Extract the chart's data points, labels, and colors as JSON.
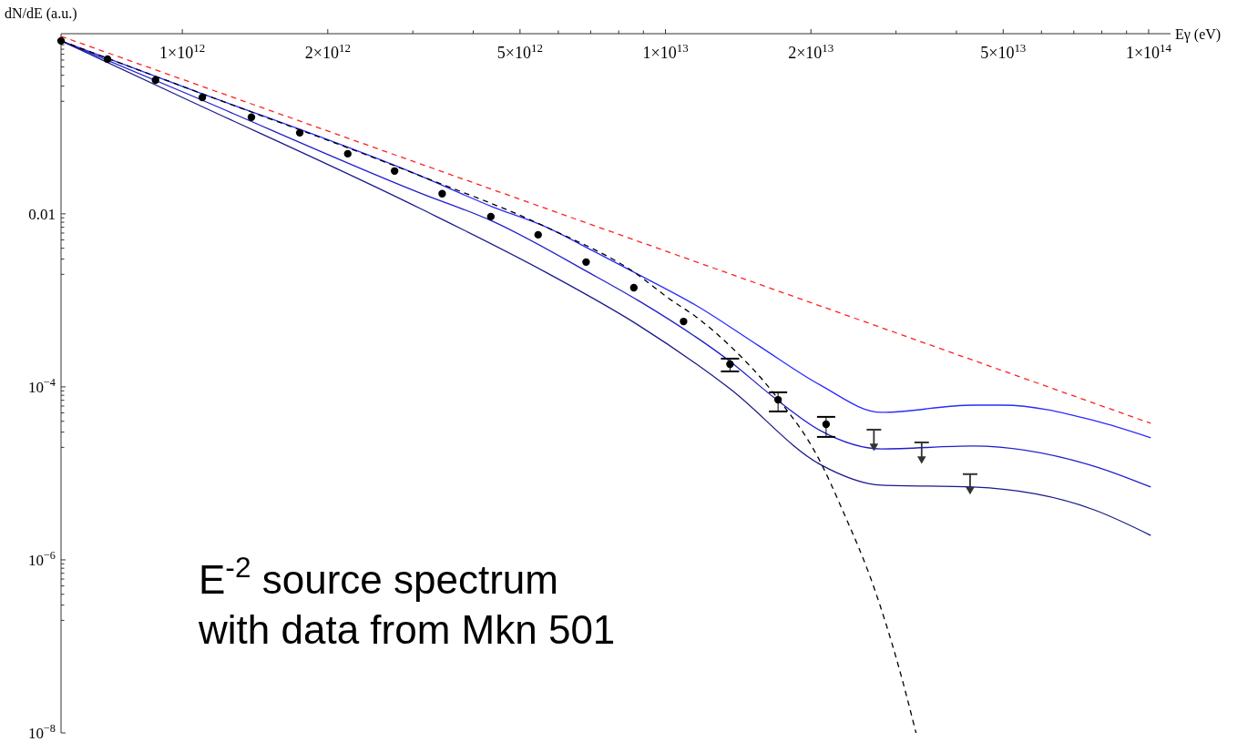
{
  "chart_data": {
    "type": "line",
    "xlabel": "Eγ (eV)",
    "ylabel": "dN/dE (a.u.)",
    "log": "xy",
    "xlim": [
      561000000000.0,
      111000000000000.0
    ],
    "ylim": [
      1e-08,
      1.21
    ],
    "xticks": [
      {
        "value": 1000000000000.0,
        "label": "1×10$^{12}$"
      },
      {
        "value": 2000000000000.0,
        "label": "2×10$^{12}$"
      },
      {
        "value": 3000000000000.0,
        "label": null
      },
      {
        "value": 4000000000000.0,
        "label": null
      },
      {
        "value": 5000000000000.0,
        "label": "5×10$^{12}$"
      },
      {
        "value": 6000000000000.0,
        "label": null
      },
      {
        "value": 7000000000000.0,
        "label": null
      },
      {
        "value": 8000000000000.0,
        "label": null
      },
      {
        "value": 9000000000000.0,
        "label": null
      },
      {
        "value": 10000000000000.0,
        "label": "1×10$^{13}$"
      },
      {
        "value": 20000000000000.0,
        "label": "2×10$^{13}$"
      },
      {
        "value": 30000000000000.0,
        "label": null
      },
      {
        "value": 40000000000000.0,
        "label": null
      },
      {
        "value": 50000000000000.0,
        "label": "5×10$^{13}$"
      },
      {
        "value": 60000000000000.0,
        "label": null
      },
      {
        "value": 70000000000000.0,
        "label": null
      },
      {
        "value": 80000000000000.0,
        "label": null
      },
      {
        "value": 90000000000000.0,
        "label": null
      },
      {
        "value": 100000000000000.0,
        "label": "1×10$^{14}$"
      }
    ],
    "yticks": [
      {
        "value": 0.01,
        "label": "0.01"
      },
      {
        "value": 0.0001,
        "label": "10$^{−4}$"
      },
      {
        "value": 1e-06,
        "label": "10$^{−6}$"
      },
      {
        "value": 1e-08,
        "label": "10$^{−8}$"
      },
      {
        "value": 0.9,
        "label": null
      },
      {
        "value": 0.8,
        "label": null
      },
      {
        "value": 0.7,
        "label": null
      },
      {
        "value": 0.6,
        "label": null
      },
      {
        "value": 0.5,
        "label": null
      },
      {
        "value": 0.4,
        "label": null
      },
      {
        "value": 0.3,
        "label": null
      },
      {
        "value": 0.2,
        "label": null
      },
      {
        "value": 0.009,
        "label": null
      },
      {
        "value": 0.008,
        "label": null
      },
      {
        "value": 0.007,
        "label": null
      },
      {
        "value": 0.006,
        "label": null
      },
      {
        "value": 0.005,
        "label": null
      },
      {
        "value": 0.004,
        "label": null
      },
      {
        "value": 0.003,
        "label": null
      },
      {
        "value": 0.002,
        "label": null
      },
      {
        "value": 9e-05,
        "label": null
      },
      {
        "value": 8e-05,
        "label": null
      },
      {
        "value": 7e-05,
        "label": null
      },
      {
        "value": 6e-05,
        "label": null
      },
      {
        "value": 5e-05,
        "label": null
      },
      {
        "value": 4e-05,
        "label": null
      },
      {
        "value": 3e-05,
        "label": null
      },
      {
        "value": 2e-05,
        "label": null
      },
      {
        "value": 9e-07,
        "label": null
      },
      {
        "value": 8e-07,
        "label": null
      },
      {
        "value": 7e-07,
        "label": null
      },
      {
        "value": 6e-07,
        "label": null
      },
      {
        "value": 5e-07,
        "label": null
      },
      {
        "value": 4e-07,
        "label": null
      },
      {
        "value": 3e-07,
        "label": null
      },
      {
        "value": 2e-07,
        "label": null
      }
    ],
    "series": [
      {
        "type": "line",
        "color": "#ff2020",
        "line_style": "dashed",
        "x": [
          561000000000.0,
          101000000000000.0
        ],
        "values": [
          1.13,
          3.79e-05
        ]
      },
      {
        "type": "line",
        "color": "#2a2aff",
        "line_style": "solid",
        "x": [
          561000000000.0,
          1000000000000.0,
          3100000000000.0,
          4380000000000.0,
          5690000000000.0,
          7160000000000.0,
          8670000000000.0,
          11700000000000.0,
          15600000000000.0,
          20900000000000.0,
          28000000000000.0,
          43300000000000.0,
          49900000000000.0,
          77100000000000.0,
          101000000000000.0
        ],
        "values": [
          1.0,
          0.298,
          0.0277,
          0.0121,
          0.00695,
          0.00361,
          0.00207,
          0.000843,
          0.000298,
          0.000105,
          5.07e-05,
          6.15e-05,
          6.15e-05,
          4.08e-05,
          2.58e-05
        ]
      },
      {
        "type": "line",
        "color": "#1f1fcc",
        "line_style": "solid",
        "x": [
          561000000000.0,
          1000000000000.0,
          3100000000000.0,
          4380000000000.0,
          6970000000000.0,
          8770000000000.0,
          13600000000000.0,
          16800000000000.0,
          20900000000000.0,
          28000000000000.0,
          43300000000000.0,
          77100000000000.0,
          101000000000000.0
        ],
        "values": [
          1.0,
          0.258,
          0.0175,
          0.00824,
          0.00207,
          0.001,
          0.000197,
          7.48e-05,
          3.13e-05,
          1.92e-05,
          2.07e-05,
          1.21e-05,
          6.95e-06
        ]
      },
      {
        "type": "line",
        "color": "#1a1a8a",
        "line_style": "solid",
        "x": [
          561000000000.0,
          1000000000000.0,
          3100000000000.0,
          5690000000000.0,
          8770000000000.0,
          13600000000000.0,
          20900000000000.0,
          28000000000000.0,
          43300000000000.0,
          77100000000000.0,
          101000000000000.0
        ],
        "values": [
          1.0,
          0.222,
          0.0116,
          0.00207,
          0.00052,
          9.5e-05,
          1.27e-05,
          7.3e-06,
          6.95e-06,
          3.79e-06,
          1.92e-06
        ]
      },
      {
        "type": "line",
        "color": "#000000",
        "line_style": "dashed",
        "x": [
          561000000000.0,
          1000000000000.0,
          3100000000000.0,
          5690000000000.0,
          8770000000000.0,
          10100000000000.0,
          11700000000000.0,
          13600000000000.0,
          16800000000000.0,
          20900000000000.0,
          23100000000000.0,
          27200000000000.0,
          30300000000000.0,
          33000000000000.0
        ],
        "values": [
          1.0,
          0.298,
          0.0277,
          0.00695,
          0.00197,
          0.00108,
          0.000615,
          0.000298,
          8.24e-05,
          1.37e-05,
          4.08e-06,
          4.28e-07,
          6.15e-08,
          1e-08
        ]
      },
      {
        "type": "scatter",
        "color": "#000000",
        "marker": "circle",
        "x": [
          561000000000.0,
          700000000000.0,
          880000000000.0,
          1100000000000.0,
          1390000000000.0,
          1750000000000.0,
          2200000000000.0,
          2750000000000.0,
          3450000000000.0,
          4350000000000.0,
          5450000000000.0,
          6850000000000.0,
          8600000000000.0,
          10900000000000.0,
          13600000000000.0,
          17100000000000.0,
          21500000000000.0
        ],
        "values": [
          1.0,
          0.615,
          0.352,
          0.222,
          0.131,
          0.0865,
          0.0495,
          0.0313,
          0.0171,
          0.0093,
          0.00573,
          0.00277,
          0.0014,
          0.00057,
          0.000183,
          7.1e-05,
          3.7e-05
        ],
        "errors": [
          null,
          null,
          null,
          null,
          null,
          null,
          null,
          null,
          null,
          null,
          null,
          null,
          null,
          null,
          [
            0.000151,
            0.000212
          ],
          [
            5.2e-05,
            8.65e-05
          ],
          [
            2.64e-05,
            4.5e-05
          ]
        ]
      },
      {
        "type": "scatter",
        "color": "#333333",
        "marker": "triangle",
        "x": [
          27000000000000.0,
          33900000000000.0,
          42700000000000.0
        ],
        "values": [
          2.07e-05,
          1.47e-05,
          6.5e-06
        ],
        "errors": [
          [
            2.07e-05,
            3.2e-05
          ],
          [
            1.47e-05,
            2.28e-05
          ],
          [
            6.5e-06,
            9.8e-06
          ]
        ]
      }
    ],
    "annotations": [
      "E$^{-2}$ source spectrum\nwith data from Mkn 501"
    ]
  }
}
